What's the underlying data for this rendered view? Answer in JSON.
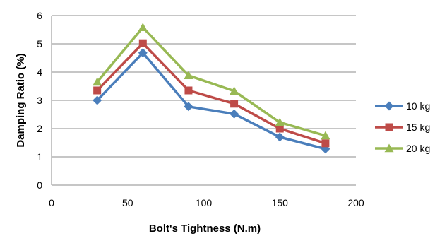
{
  "chart_data": {
    "type": "line",
    "title": "",
    "xlabel": "Bolt's Tightness (N.m)",
    "ylabel": "Damping Ratio (%)",
    "xlim": [
      0,
      200
    ],
    "ylim": [
      0,
      6
    ],
    "xticks": [
      0,
      50,
      100,
      150,
      200
    ],
    "yticks": [
      0,
      1,
      2,
      3,
      4,
      5,
      6
    ],
    "grid": "horizontal",
    "legend_position": "right",
    "x": [
      30,
      60,
      90,
      120,
      150,
      180
    ],
    "series": [
      {
        "name": "10 kg",
        "marker": "diamond",
        "color": "#4A7EBB",
        "values": [
          3.0,
          4.68,
          2.78,
          2.52,
          1.7,
          1.28
        ]
      },
      {
        "name": "15 kg",
        "marker": "square",
        "color": "#BE4B48",
        "values": [
          3.35,
          5.02,
          3.35,
          2.88,
          2.0,
          1.48
        ]
      },
      {
        "name": "20 kg",
        "marker": "triangle",
        "color": "#98B954",
        "values": [
          3.65,
          5.58,
          3.88,
          3.33,
          2.22,
          1.75
        ]
      }
    ]
  }
}
